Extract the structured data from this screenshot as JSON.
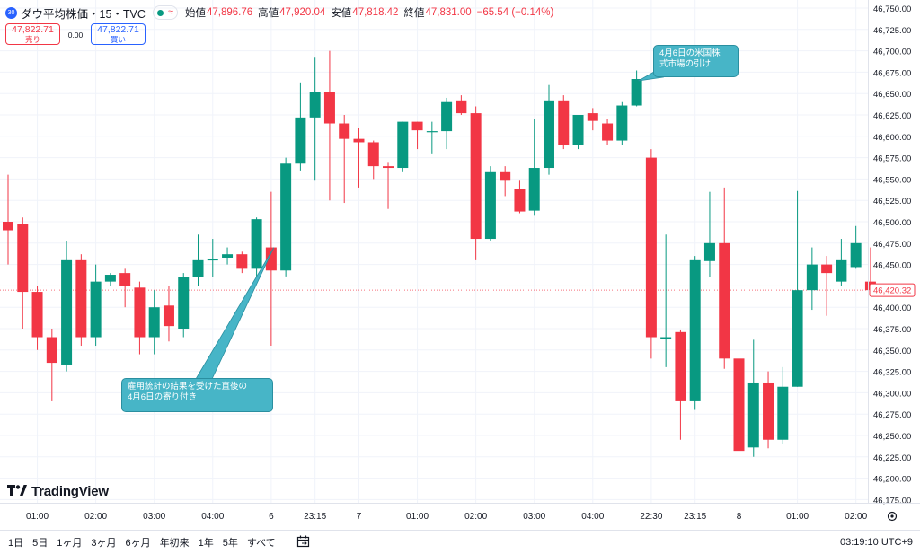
{
  "header": {
    "badge": "30",
    "symbol": "ダウ平均株価・15・TVC",
    "approx": "≈",
    "ohlc": [
      {
        "label": "始値",
        "value": "47,896.76"
      },
      {
        "label": "高値",
        "value": "47,920.04"
      },
      {
        "label": "安値",
        "value": "47,818.42"
      },
      {
        "label": "終値",
        "value": "47,831.00"
      }
    ],
    "change": "−65.54 (−0.14%)"
  },
  "bid_ask": {
    "sell_price": "47,822.71",
    "sell_label": "売り",
    "spread": "0.00",
    "buy_price": "47,822.71",
    "buy_label": "買い"
  },
  "brand": {
    "name": "TradingView"
  },
  "toolbar": {
    "ranges": [
      "1日",
      "5日",
      "1ヶ月",
      "3ヶ月",
      "6ヶ月",
      "年初来",
      "1年",
      "5年",
      "すべて"
    ],
    "clock": "03:19:10 UTC+9"
  },
  "colors": {
    "up": "#089981",
    "down": "#f23645",
    "callout": "#47b5c7"
  },
  "chart_data": {
    "type": "candlestick",
    "y_ticks": [
      "46,175.00",
      "46,200.00",
      "46,225.00",
      "46,250.00",
      "46,275.00",
      "46,300.00",
      "46,325.00",
      "46,350.00",
      "46,375.00",
      "46,400.00",
      "46,425.00",
      "46,450.00",
      "46,475.00",
      "46,500.00",
      "46,525.00",
      "46,550.00",
      "46,575.00",
      "46,600.00",
      "46,625.00",
      "46,650.00",
      "46,675.00",
      "46,700.00",
      "46,725.00",
      "46,750.00"
    ],
    "ylim": [
      46160,
      46760
    ],
    "x_ticks": [
      {
        "label": "01:00",
        "bar": 2
      },
      {
        "label": "02:00",
        "bar": 6
      },
      {
        "label": "03:00",
        "bar": 10
      },
      {
        "label": "04:00",
        "bar": 14
      },
      {
        "label": "6",
        "bar": 18
      },
      {
        "label": "23:15",
        "bar": 21
      },
      {
        "label": "7",
        "bar": 24
      },
      {
        "label": "01:00",
        "bar": 28
      },
      {
        "label": "02:00",
        "bar": 32
      },
      {
        "label": "03:00",
        "bar": 36
      },
      {
        "label": "04:00",
        "bar": 40
      },
      {
        "label": "22:30",
        "bar": 44
      },
      {
        "label": "23:15",
        "bar": 47
      },
      {
        "label": "8",
        "bar": 50
      },
      {
        "label": "01:00",
        "bar": 54
      },
      {
        "label": "02:00",
        "bar": 58
      }
    ],
    "last_price": "46,420.32",
    "candles": [
      {
        "o": 46500,
        "h": 46555,
        "l": 46450,
        "c": 46490
      },
      {
        "o": 46497,
        "h": 46505,
        "l": 46375,
        "c": 46418
      },
      {
        "o": 46418,
        "h": 46425,
        "l": 46350,
        "c": 46365
      },
      {
        "o": 46365,
        "h": 46375,
        "l": 46290,
        "c": 46335
      },
      {
        "o": 46333,
        "h": 46478,
        "l": 46325,
        "c": 46455
      },
      {
        "o": 46455,
        "h": 46462,
        "l": 46355,
        "c": 46365
      },
      {
        "o": 46365,
        "h": 46450,
        "l": 46355,
        "c": 46430
      },
      {
        "o": 46430,
        "h": 46440,
        "l": 46425,
        "c": 46438
      },
      {
        "o": 46440,
        "h": 46445,
        "l": 46400,
        "c": 46425
      },
      {
        "o": 46423,
        "h": 46430,
        "l": 46345,
        "c": 46365
      },
      {
        "o": 46365,
        "h": 46420,
        "l": 46345,
        "c": 46400
      },
      {
        "o": 46402,
        "h": 46425,
        "l": 46360,
        "c": 46378
      },
      {
        "o": 46375,
        "h": 46440,
        "l": 46365,
        "c": 46435
      },
      {
        "o": 46435,
        "h": 46485,
        "l": 46425,
        "c": 46455
      },
      {
        "o": 46455,
        "h": 46480,
        "l": 46435,
        "c": 46456
      },
      {
        "o": 46458,
        "h": 46470,
        "l": 46450,
        "c": 46462
      },
      {
        "o": 46462,
        "h": 46465,
        "l": 46440,
        "c": 46445
      },
      {
        "o": 46445,
        "h": 46505,
        "l": 46435,
        "c": 46503
      },
      {
        "o": 46470,
        "h": 46535,
        "l": 46355,
        "c": 46443
      },
      {
        "o": 46443,
        "h": 46575,
        "l": 46436,
        "c": 46568
      },
      {
        "o": 46568,
        "h": 46663,
        "l": 46560,
        "c": 46622
      },
      {
        "o": 46622,
        "h": 46692,
        "l": 46548,
        "c": 46652
      },
      {
        "o": 46652,
        "h": 46700,
        "l": 46525,
        "c": 46615
      },
      {
        "o": 46615,
        "h": 46625,
        "l": 46522,
        "c": 46597
      },
      {
        "o": 46597,
        "h": 46610,
        "l": 46540,
        "c": 46593
      },
      {
        "o": 46593,
        "h": 46595,
        "l": 46550,
        "c": 46565
      },
      {
        "o": 46565,
        "h": 46570,
        "l": 46515,
        "c": 46563
      },
      {
        "o": 46563,
        "h": 46617,
        "l": 46558,
        "c": 46617
      },
      {
        "o": 46617,
        "h": 46617,
        "l": 46585,
        "c": 46607
      },
      {
        "o": 46605,
        "h": 46617,
        "l": 46580,
        "c": 46606
      },
      {
        "o": 46606,
        "h": 46645,
        "l": 46585,
        "c": 46640
      },
      {
        "o": 46642,
        "h": 46648,
        "l": 46625,
        "c": 46627
      },
      {
        "o": 46627,
        "h": 46635,
        "l": 46455,
        "c": 46480
      },
      {
        "o": 46480,
        "h": 46565,
        "l": 46478,
        "c": 46558
      },
      {
        "o": 46558,
        "h": 46565,
        "l": 46530,
        "c": 46548
      },
      {
        "o": 46538,
        "h": 46548,
        "l": 46510,
        "c": 46512
      },
      {
        "o": 46513,
        "h": 46620,
        "l": 46507,
        "c": 46563
      },
      {
        "o": 46563,
        "h": 46660,
        "l": 46555,
        "c": 46642
      },
      {
        "o": 46642,
        "h": 46648,
        "l": 46585,
        "c": 46590
      },
      {
        "o": 46590,
        "h": 46625,
        "l": 46585,
        "c": 46625
      },
      {
        "o": 46627,
        "h": 46633,
        "l": 46607,
        "c": 46618
      },
      {
        "o": 46615,
        "h": 46620,
        "l": 46590,
        "c": 46595
      },
      {
        "o": 46595,
        "h": 46640,
        "l": 46590,
        "c": 46636
      },
      {
        "o": 46636,
        "h": 46677,
        "l": 46635,
        "c": 46667
      },
      {
        "o": 46575,
        "h": 46585,
        "l": 46340,
        "c": 46365
      },
      {
        "o": 46363,
        "h": 46485,
        "l": 46330,
        "c": 46365
      },
      {
        "o": 46371,
        "h": 46374,
        "l": 46245,
        "c": 46290
      },
      {
        "o": 46290,
        "h": 46460,
        "l": 46280,
        "c": 46455
      },
      {
        "o": 46454,
        "h": 46535,
        "l": 46435,
        "c": 46475
      },
      {
        "o": 46475,
        "h": 46540,
        "l": 46328,
        "c": 46340
      },
      {
        "o": 46340,
        "h": 46345,
        "l": 46216,
        "c": 46232
      },
      {
        "o": 46236,
        "h": 46362,
        "l": 46225,
        "c": 46312
      },
      {
        "o": 46312,
        "h": 46325,
        "l": 46235,
        "c": 46245
      },
      {
        "o": 46245,
        "h": 46330,
        "l": 46240,
        "c": 46307
      },
      {
        "o": 46307,
        "h": 46536,
        "l": 46307,
        "c": 46420
      },
      {
        "o": 46420,
        "h": 46470,
        "l": 46397,
        "c": 46450
      },
      {
        "o": 46450,
        "h": 46460,
        "l": 46390,
        "c": 46440
      },
      {
        "o": 46430,
        "h": 46480,
        "l": 46425,
        "c": 46455
      },
      {
        "o": 46447,
        "h": 46495,
        "l": 46445,
        "c": 46475
      },
      {
        "o": 46430,
        "h": 46470,
        "l": 46418,
        "c": 46420
      }
    ],
    "annotations": [
      {
        "text": "4月6日の米国株\n式市場の引け",
        "bar": 43
      },
      {
        "text": "雇用統計の結果を受けた直後の\n4月6日の寄り付き",
        "bar": 18
      }
    ]
  }
}
